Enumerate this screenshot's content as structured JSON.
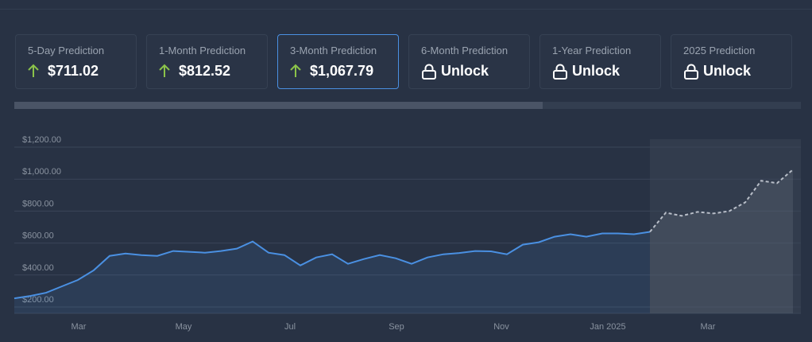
{
  "cards": [
    {
      "label": "5-Day Prediction",
      "value": "$711.02"
    },
    {
      "label": "1-Month Prediction",
      "value": "$812.52"
    },
    {
      "label": "3-Month Prediction",
      "value": "$1,067.79"
    },
    {
      "label": "6-Month Prediction",
      "value": "Unlock"
    },
    {
      "label": "1-Year Prediction",
      "value": "Unlock"
    },
    {
      "label": "2025 Prediction",
      "value": "Unlock"
    }
  ],
  "chart_data": {
    "type": "area",
    "x_labels": [
      "Mar",
      "May",
      "Jul",
      "Sep",
      "Nov",
      "Jan 2025",
      "Mar"
    ],
    "ylim": [
      160,
      1250
    ],
    "yticks": [
      {
        "value": 200,
        "label": "$200.00"
      },
      {
        "value": 400,
        "label": "$400.00"
      },
      {
        "value": 600,
        "label": "$600.00"
      },
      {
        "value": 800,
        "label": "$800.00"
      },
      {
        "value": 1000,
        "label": "$1,000.00"
      },
      {
        "value": 1200,
        "label": "$1,200.00"
      }
    ],
    "grid": true,
    "history": {
      "color": "#4a90e2",
      "values": [
        254,
        269,
        289,
        329,
        369,
        430,
        520,
        535,
        525,
        520,
        550,
        545,
        540,
        550,
        565,
        610,
        540,
        525,
        460,
        510,
        530,
        470,
        500,
        525,
        505,
        470,
        510,
        530,
        538,
        550,
        548,
        530,
        590,
        605,
        640,
        655,
        640,
        660,
        660,
        655,
        670
      ]
    },
    "forecast": {
      "color": "#b8bec8",
      "values": [
        670,
        790,
        770,
        795,
        785,
        800,
        855,
        990,
        975,
        1060
      ]
    }
  }
}
